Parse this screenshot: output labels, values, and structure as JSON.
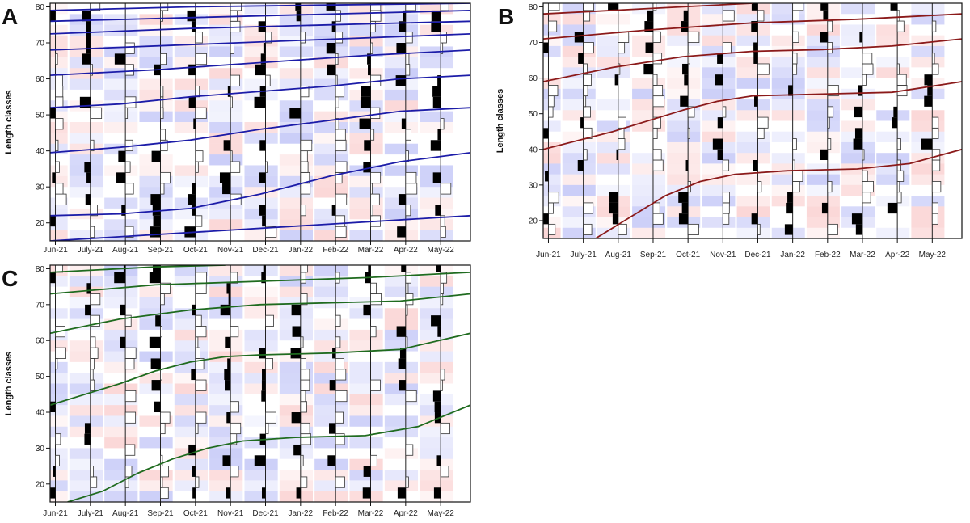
{
  "chart_data": [
    {
      "panel_label": "A",
      "type": "length-frequency",
      "ylabel": "Length classes",
      "months": [
        "Jun-21",
        "July-21",
        "Aug-21",
        "Sep-21",
        "Oct-21",
        "Nov-21",
        "Dec-21",
        "Jan-22",
        "Feb-22",
        "Mar-22",
        "Apr-22",
        "May-22"
      ],
      "yticks": [
        20,
        30,
        40,
        50,
        60,
        70,
        80
      ],
      "ylim": [
        15,
        81
      ],
      "curve_color": "#1c1ca8",
      "growth_curves": [
        {
          "x": [
            0,
            12
          ],
          "y": [
            15,
            22
          ]
        },
        {
          "x": [
            0,
            2,
            4,
            6,
            8,
            10,
            12
          ],
          "y": [
            22,
            22.5,
            24,
            28,
            33,
            37,
            39.5
          ]
        },
        {
          "x": [
            0,
            2,
            4,
            6,
            8,
            10,
            12
          ],
          "y": [
            39.5,
            41,
            43,
            46,
            48.5,
            51,
            52
          ]
        },
        {
          "x": [
            0,
            2,
            4,
            6,
            8,
            10,
            12
          ],
          "y": [
            52,
            53,
            55,
            56.5,
            58,
            60,
            61
          ]
        },
        {
          "x": [
            0,
            3,
            6,
            9,
            12
          ],
          "y": [
            61,
            62.5,
            64.5,
            66.5,
            68
          ]
        },
        {
          "x": [
            0,
            4,
            8,
            12
          ],
          "y": [
            68,
            69.5,
            71,
            72.5
          ]
        },
        {
          "x": [
            0,
            4,
            8,
            12
          ],
          "y": [
            72.5,
            74,
            75,
            76
          ]
        },
        {
          "x": [
            0,
            4,
            8,
            12
          ],
          "y": [
            76,
            77,
            78,
            79
          ]
        },
        {
          "x": [
            0,
            4,
            8,
            12
          ],
          "y": [
            79,
            80,
            80.5,
            81
          ]
        }
      ]
    },
    {
      "panel_label": "B",
      "type": "length-frequency",
      "ylabel": "Length classes",
      "months": [
        "Jun-21",
        "July-21",
        "Aug-21",
        "Sep-21",
        "Oct-21",
        "Nov-21",
        "Dec-21",
        "Jan-22",
        "Feb-22",
        "Mar-22",
        "Apr-22",
        "May-22"
      ],
      "yticks": [
        20,
        30,
        40,
        50,
        60,
        70,
        80
      ],
      "ylim": [
        15,
        81
      ],
      "curve_color": "#8b1a1a",
      "growth_curves": [
        {
          "x": [
            1.5,
            2.5,
            3.5,
            4.5,
            5.5,
            7,
            9,
            10.5,
            12
          ],
          "y": [
            15,
            21,
            27,
            31,
            33,
            34,
            34.5,
            36,
            40
          ]
        },
        {
          "x": [
            0,
            2,
            4,
            5,
            6,
            8,
            10,
            12
          ],
          "y": [
            40,
            45,
            51,
            53.5,
            55,
            55.5,
            56,
            59
          ]
        },
        {
          "x": [
            0,
            2,
            4,
            6,
            8,
            10,
            12
          ],
          "y": [
            59,
            63,
            66,
            67.5,
            68,
            69,
            71
          ]
        },
        {
          "x": [
            0,
            3,
            6,
            9,
            12
          ],
          "y": [
            71,
            73.5,
            75.5,
            76.5,
            78
          ]
        },
        {
          "x": [
            0,
            3,
            6
          ],
          "y": [
            78,
            79.5,
            81
          ]
        }
      ]
    },
    {
      "panel_label": "C",
      "type": "length-frequency",
      "ylabel": "Length classes",
      "months": [
        "Jun-21",
        "July-21",
        "Aug-21",
        "Sep-21",
        "Oct-21",
        "Nov-21",
        "Dec-21",
        "Jan-22",
        "Feb-22",
        "Mar-22",
        "Apr-22",
        "May-22"
      ],
      "yticks": [
        20,
        30,
        40,
        50,
        60,
        70,
        80
      ],
      "ylim": [
        15,
        81
      ],
      "curve_color": "#1f6b1f",
      "growth_curves": [
        {
          "x": [
            0.5,
            1.5,
            2.5,
            3.5,
            4.5,
            5.5,
            7,
            9,
            10.5,
            12
          ],
          "y": [
            15,
            18,
            23,
            27,
            30,
            32,
            33,
            33.5,
            36,
            42
          ]
        },
        {
          "x": [
            0,
            1,
            2,
            3,
            4,
            5,
            6,
            8,
            10,
            12
          ],
          "y": [
            42,
            45,
            48,
            51.5,
            54,
            55.5,
            56,
            56.5,
            57.5,
            62
          ]
        },
        {
          "x": [
            0,
            2,
            4,
            6,
            8,
            10,
            12
          ],
          "y": [
            62,
            66,
            68.5,
            70,
            70.5,
            71,
            73
          ]
        },
        {
          "x": [
            0,
            3,
            6,
            9,
            12
          ],
          "y": [
            73,
            75.5,
            76.5,
            77.5,
            79
          ]
        },
        {
          "x": [
            0,
            3,
            5
          ],
          "y": [
            79,
            80.5,
            81
          ]
        }
      ]
    }
  ]
}
